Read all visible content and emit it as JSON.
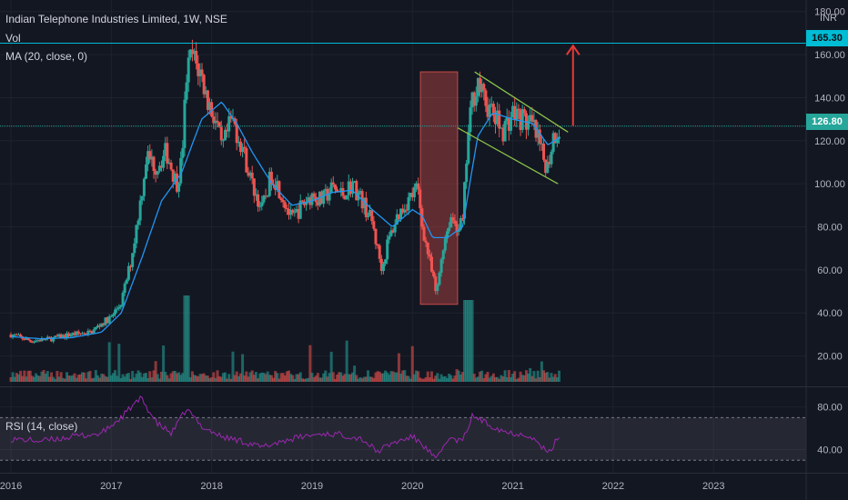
{
  "header": {
    "symbol_title": "Indian Telephone Industries Limited, 1W, NSE",
    "vol_label": "Vol",
    "ma_label": "MA (20, close, 0)",
    "rsi_label": "RSI (14, close)",
    "currency": "INR"
  },
  "price_tags": {
    "resistance": "165.30",
    "last": "126.80"
  },
  "colors": {
    "background": "#131722",
    "up": "#26a69a",
    "down": "#ef5350",
    "ma": "#2196f3",
    "rsi": "#9c27b0",
    "resistance": "#00bcd4",
    "trend": "#8bc34a",
    "arrow": "#e53935"
  },
  "chart_data": {
    "type": "candlestick",
    "price_axis": {
      "ticks": [
        "180.00",
        "160.00",
        "140.00",
        "120.00",
        "100.00",
        "80.00",
        "60.00",
        "40.00",
        "20.00"
      ],
      "range": [
        8,
        182
      ]
    },
    "rsi_axis": {
      "ticks": [
        "80.00",
        "40.00"
      ],
      "range": [
        20,
        95
      ],
      "bands": [
        70,
        30
      ]
    },
    "time_axis": {
      "ticks": [
        "2016",
        "2017",
        "2018",
        "2019",
        "2020",
        "2021",
        "2022",
        "2023"
      ]
    },
    "horizontal_levels": [
      165.3,
      126.8
    ],
    "price_path": [
      [
        2016.0,
        30
      ],
      [
        2016.2,
        27
      ],
      [
        2016.4,
        28
      ],
      [
        2016.6,
        30
      ],
      [
        2016.8,
        31
      ],
      [
        2016.9,
        35
      ],
      [
        2017.0,
        38
      ],
      [
        2017.1,
        45
      ],
      [
        2017.2,
        65
      ],
      [
        2017.3,
        95
      ],
      [
        2017.35,
        113
      ],
      [
        2017.45,
        108
      ],
      [
        2017.55,
        115
      ],
      [
        2017.65,
        100
      ],
      [
        2017.7,
        110
      ],
      [
        2017.75,
        150
      ],
      [
        2017.8,
        160
      ],
      [
        2017.9,
        150
      ],
      [
        2017.95,
        140
      ],
      [
        2018.05,
        128
      ],
      [
        2018.1,
        115
      ],
      [
        2018.2,
        130
      ],
      [
        2018.3,
        118
      ],
      [
        2018.4,
        100
      ],
      [
        2018.5,
        88
      ],
      [
        2018.6,
        105
      ],
      [
        2018.7,
        95
      ],
      [
        2018.8,
        83
      ],
      [
        2018.9,
        90
      ],
      [
        2019.0,
        95
      ],
      [
        2019.1,
        92
      ],
      [
        2019.2,
        98
      ],
      [
        2019.3,
        95
      ],
      [
        2019.4,
        100
      ],
      [
        2019.5,
        92
      ],
      [
        2019.6,
        82
      ],
      [
        2019.65,
        70
      ],
      [
        2019.7,
        60
      ],
      [
        2019.75,
        72
      ],
      [
        2019.85,
        85
      ],
      [
        2019.95,
        92
      ],
      [
        2020.05,
        98
      ],
      [
        2020.1,
        80
      ],
      [
        2020.18,
        62
      ],
      [
        2020.24,
        48
      ],
      [
        2020.3,
        70
      ],
      [
        2020.38,
        85
      ],
      [
        2020.45,
        80
      ],
      [
        2020.5,
        82
      ],
      [
        2020.55,
        120
      ],
      [
        2020.6,
        140
      ],
      [
        2020.65,
        148
      ],
      [
        2020.7,
        140
      ],
      [
        2020.8,
        132
      ],
      [
        2020.9,
        125
      ],
      [
        2021.0,
        133
      ],
      [
        2021.1,
        130
      ],
      [
        2021.2,
        126
      ],
      [
        2021.25,
        120
      ],
      [
        2021.3,
        112
      ],
      [
        2021.35,
        108
      ],
      [
        2021.4,
        122
      ],
      [
        2021.48,
        126.8
      ]
    ],
    "ma_path": [
      [
        2016.0,
        29
      ],
      [
        2016.3,
        28
      ],
      [
        2016.6,
        28.5
      ],
      [
        2016.9,
        31
      ],
      [
        2017.1,
        40
      ],
      [
        2017.3,
        65
      ],
      [
        2017.5,
        92
      ],
      [
        2017.7,
        105
      ],
      [
        2017.9,
        130
      ],
      [
        2018.1,
        138
      ],
      [
        2018.25,
        128
      ],
      [
        2018.4,
        115
      ],
      [
        2018.6,
        100
      ],
      [
        2018.8,
        90
      ],
      [
        2019.0,
        92
      ],
      [
        2019.2,
        96
      ],
      [
        2019.4,
        97
      ],
      [
        2019.6,
        88
      ],
      [
        2019.8,
        80
      ],
      [
        2020.0,
        88
      ],
      [
        2020.1,
        85
      ],
      [
        2020.2,
        75
      ],
      [
        2020.35,
        75
      ],
      [
        2020.5,
        80
      ],
      [
        2020.65,
        122
      ],
      [
        2020.8,
        133
      ],
      [
        2021.0,
        130
      ],
      [
        2021.2,
        128
      ],
      [
        2021.35,
        118
      ],
      [
        2021.48,
        122
      ]
    ],
    "rsi_path": [
      [
        2016.0,
        50
      ],
      [
        2016.3,
        48
      ],
      [
        2016.6,
        52
      ],
      [
        2016.9,
        55
      ],
      [
        2017.1,
        70
      ],
      [
        2017.2,
        80
      ],
      [
        2017.3,
        88
      ],
      [
        2017.45,
        65
      ],
      [
        2017.6,
        55
      ],
      [
        2017.75,
        78
      ],
      [
        2017.9,
        62
      ],
      [
        2018.1,
        52
      ],
      [
        2018.3,
        48
      ],
      [
        2018.5,
        42
      ],
      [
        2018.7,
        48
      ],
      [
        2018.9,
        52
      ],
      [
        2019.1,
        55
      ],
      [
        2019.3,
        54
      ],
      [
        2019.5,
        50
      ],
      [
        2019.65,
        38
      ],
      [
        2019.8,
        46
      ],
      [
        2020.0,
        52
      ],
      [
        2020.1,
        45
      ],
      [
        2020.24,
        30
      ],
      [
        2020.35,
        50
      ],
      [
        2020.5,
        48
      ],
      [
        2020.6,
        72
      ],
      [
        2020.75,
        64
      ],
      [
        2020.95,
        56
      ],
      [
        2021.15,
        54
      ],
      [
        2021.3,
        42
      ],
      [
        2021.35,
        35
      ],
      [
        2021.48,
        56
      ]
    ],
    "annotations": {
      "highlight_box": {
        "from": 2020.08,
        "to": 2020.45,
        "low": 44,
        "high": 152
      },
      "wedge_upper": [
        [
          2020.62,
          152
        ],
        [
          2021.55,
          124
        ]
      ],
      "wedge_lower": [
        [
          2020.45,
          126
        ],
        [
          2021.45,
          100
        ]
      ],
      "target_arrow": {
        "x": 2021.6,
        "from": 127,
        "to": 165
      }
    }
  }
}
